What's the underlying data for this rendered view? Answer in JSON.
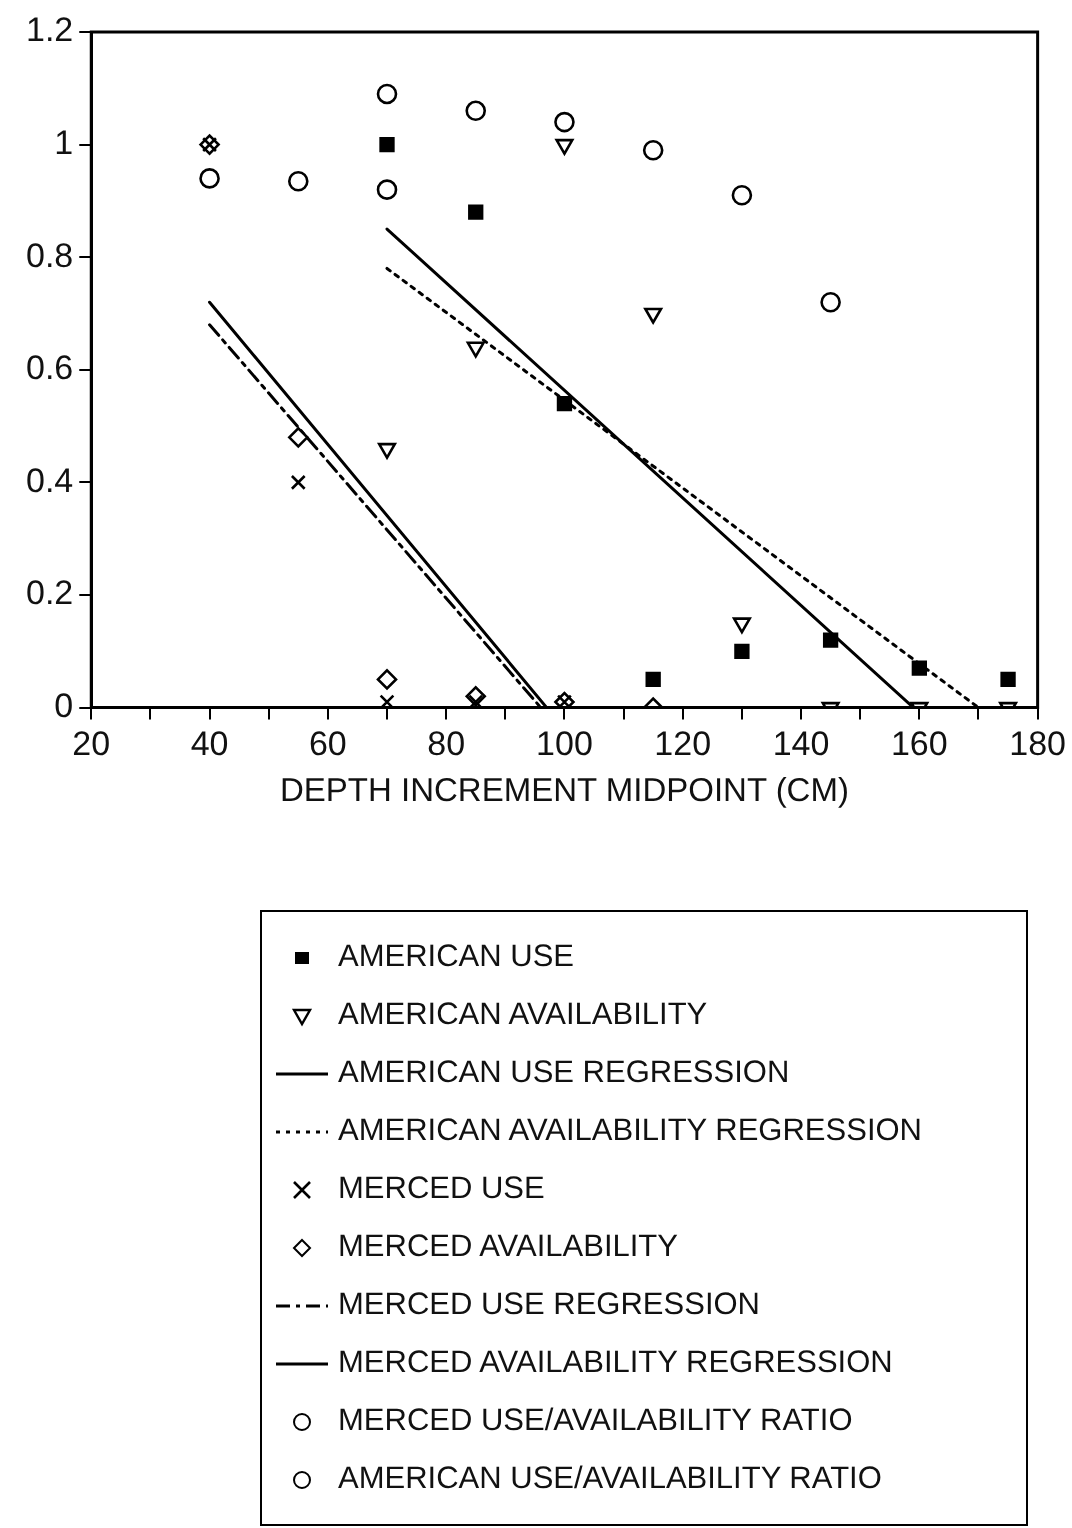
{
  "chart_data": {
    "type": "scatter",
    "xlabel": "DEPTH INCREMENT MIDPOINT (CM)",
    "xlim": [
      20,
      180
    ],
    "xticks": [
      20,
      {
        "value": 30,
        "label": null
      },
      40,
      {
        "value": 50,
        "label": null
      },
      60,
      {
        "value": 70,
        "label": null
      },
      80,
      {
        "value": 90,
        "label": null
      },
      100,
      {
        "value": 110,
        "label": null
      },
      120,
      {
        "value": 130,
        "label": null
      },
      140,
      {
        "value": 150,
        "label": null
      },
      160,
      {
        "value": 170,
        "label": null
      },
      180
    ],
    "ylim": [
      0,
      1.2
    ],
    "yticks": [
      0,
      0.2,
      0.4,
      0.6,
      0.8,
      1,
      1.2
    ],
    "grid": false,
    "legend": "bottom",
    "series": [
      {
        "name": "AMERICAN USE",
        "color": "#000000",
        "marker": "square",
        "x": [
          70,
          85,
          100,
          115,
          130,
          145,
          160,
          175
        ],
        "values": [
          1.0,
          0.88,
          0.54,
          0.05,
          0.1,
          0.12,
          0.07,
          0.05
        ]
      },
      {
        "name": "AMERICAN AVAILABILITY",
        "color": "#000000",
        "marker": "triangle",
        "x": [
          70,
          85,
          100,
          115,
          130,
          145,
          160,
          175
        ],
        "values": [
          0.46,
          0.64,
          1.0,
          0.7,
          0.15,
          0,
          0,
          0
        ]
      },
      {
        "name": "AMERICAN USE REGRESSION",
        "color": "#000000",
        "type": "line",
        "marker": "none",
        "line_style": "solid",
        "x": [
          70,
          159
        ],
        "values": [
          0.85,
          0
        ]
      },
      {
        "name": "AMERICAN AVAILABILITY REGRESSION",
        "color": "#000000",
        "type": "line",
        "marker": "none",
        "line_style": "dotted",
        "x": [
          70,
          170
        ],
        "values": [
          0.78,
          0
        ]
      },
      {
        "name": "MERCED USE",
        "color": "#000000",
        "marker": "cross",
        "x": [
          40,
          55,
          70,
          85,
          100
        ],
        "values": [
          1.0,
          0.4,
          0.01,
          0.01,
          0.01
        ]
      },
      {
        "name": "MERCED AVAILABILITY",
        "color": "#000000",
        "marker": "diamond",
        "x": [
          40,
          55,
          70,
          85,
          100,
          115
        ],
        "values": [
          1.0,
          0.48,
          0.05,
          0.02,
          0.01,
          0
        ]
      },
      {
        "name": "MERCED USE REGRESSION",
        "color": "#000000",
        "type": "line",
        "marker": "none",
        "line_style": "dashed",
        "x": [
          40,
          96
        ],
        "values": [
          0.68,
          0
        ]
      },
      {
        "name": "MERCED AVAILABILITY REGRESSION",
        "color": "#000000",
        "type": "line",
        "marker": "none",
        "line_style": "solid",
        "x": [
          40,
          97
        ],
        "values": [
          0.72,
          0
        ]
      },
      {
        "name": "MERCED USE/AVAILABILITY RATIO",
        "color": "#000000",
        "marker": "circle",
        "x": [
          40,
          55,
          70
        ],
        "values": [
          0.94,
          0.935,
          0.92
        ]
      },
      {
        "name": "AMERICAN USE/AVAILABILITY RATIO",
        "color": "#000000",
        "marker": "circle",
        "x": [
          70,
          85,
          100,
          115,
          130,
          145
        ],
        "values": [
          1.09,
          1.06,
          1.04,
          0.99,
          0.91,
          0.72
        ]
      }
    ]
  }
}
